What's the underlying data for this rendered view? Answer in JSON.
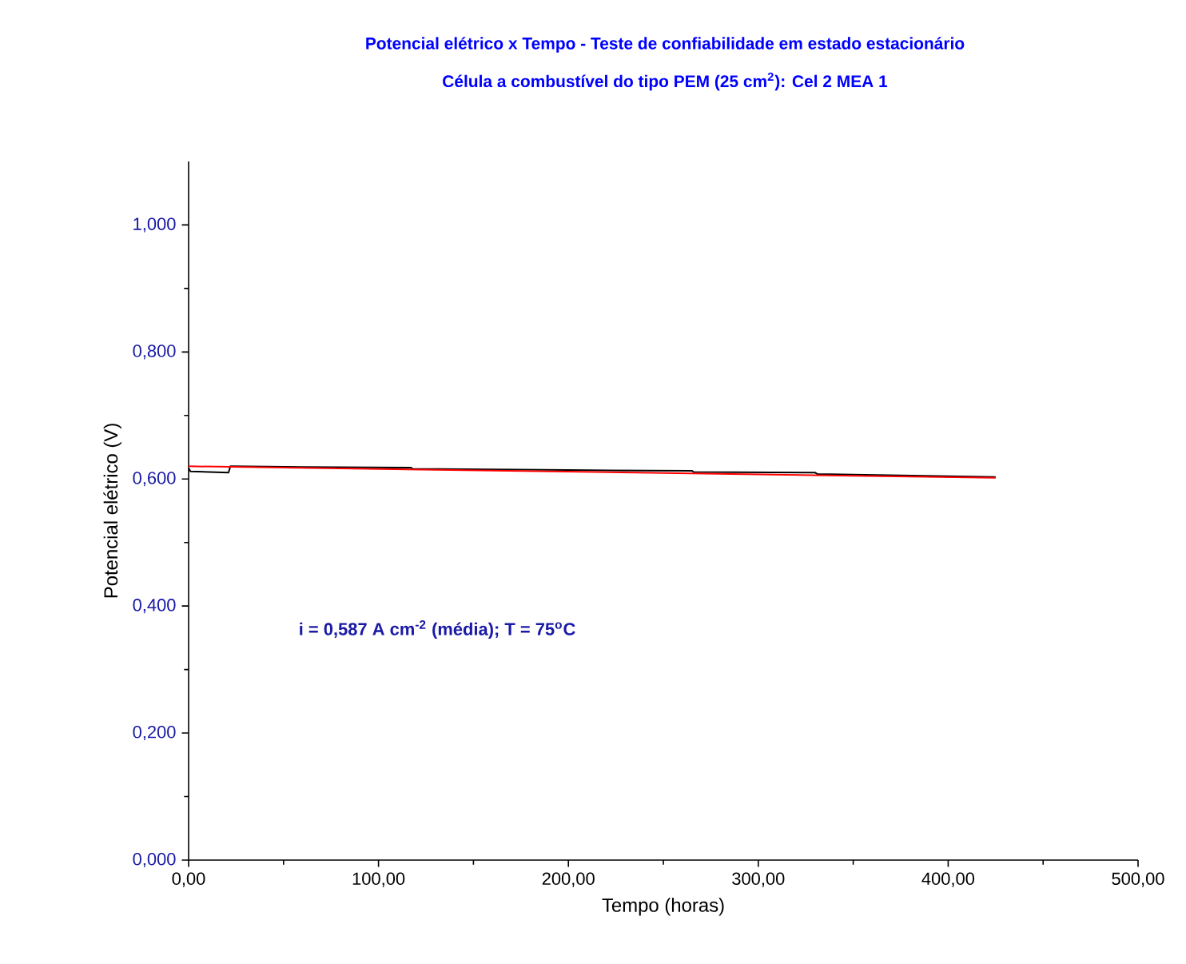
{
  "chart_data": {
    "type": "line",
    "title": "Potencial elétrico x Tempo - Teste de confiabilidade em estado estacionário",
    "subtitle": "Célula a combustível do tipo PEM (25 cm$^{2}$): Cel 2 MEA 1",
    "xlabel": "Tempo (horas)",
    "ylabel": "Potencial elétrico (V)",
    "annotations": [
      "i = 0,587 A cm$^{-2}$ (média); T = 75$^{o}$C"
    ],
    "series": [
      {
        "color": "#000000",
        "x": [
          0,
          1,
          21,
          22,
          60,
          117,
          118,
          200,
          265,
          266,
          330,
          331,
          425
        ],
        "values": [
          0.617,
          0.612,
          0.61,
          0.62,
          0.619,
          0.618,
          0.616,
          0.614,
          0.613,
          0.611,
          0.61,
          0.608,
          0.603
        ]
      },
      {
        "color": "#ff0000",
        "x": [
          0,
          425
        ],
        "values": [
          0.62,
          0.602
        ]
      }
    ],
    "xlim": [
      0,
      500
    ],
    "ylim": [
      0,
      1.1
    ],
    "xticks": [
      {
        "value": 0,
        "label": "0,00"
      },
      {
        "value": 100,
        "label": "100,00"
      },
      {
        "value": 200,
        "label": "200,00"
      },
      {
        "value": 300,
        "label": "300,00"
      },
      {
        "value": 400,
        "label": "400,00"
      },
      {
        "value": 500,
        "label": "500,00"
      }
    ],
    "yticks": [
      {
        "value": 0,
        "label": "0,000"
      },
      {
        "value": 0.2,
        "label": "0,200"
      },
      {
        "value": 0.4,
        "label": "0,400"
      },
      {
        "value": 0.6,
        "label": "0,600"
      },
      {
        "value": 0.8,
        "label": "0,800"
      },
      {
        "value": 1.0,
        "label": "1,000"
      }
    ],
    "grid": false,
    "marker": "none",
    "line_style": "solid"
  }
}
